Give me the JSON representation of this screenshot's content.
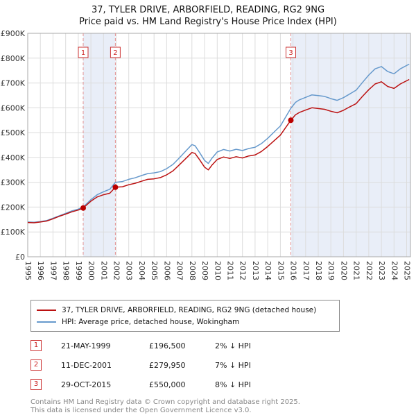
{
  "chart_data": {
    "type": "line",
    "title": "37, TYLER DRIVE, ARBORFIELD, READING, RG2 9NG",
    "subtitle": "Price paid vs. HM Land Registry's House Price Index (HPI)",
    "ylim": [
      0,
      900000
    ],
    "ytick_step": 100000,
    "ytick_labels": [
      "£0",
      "£100K",
      "£200K",
      "£300K",
      "£400K",
      "£500K",
      "£600K",
      "£700K",
      "£800K",
      "£900K"
    ],
    "xlim": [
      1995,
      2025.3
    ],
    "xticks": [
      1995,
      1996,
      1997,
      1998,
      1999,
      2000,
      2001,
      2002,
      2003,
      2004,
      2005,
      2006,
      2007,
      2008,
      2009,
      2010,
      2011,
      2012,
      2013,
      2014,
      2015,
      2016,
      2017,
      2018,
      2019,
      2020,
      2021,
      2022,
      2023,
      2024,
      2025
    ],
    "grid": true,
    "legend_position": "below",
    "colors": {
      "price_paid": "#bb1111",
      "hpi": "#6699cc",
      "band": "#e9eef8",
      "grid": "#dcdcdc",
      "frame": "#aaaaaa",
      "dashed": "#e39090",
      "marker": "#bb0000",
      "marker_box_border": "#cc3333",
      "marker_box_text": "#cc2222"
    },
    "bands": [
      [
        1999.39,
        2001.94
      ],
      [
        2015.83,
        2025.3
      ]
    ],
    "sales": [
      {
        "label": "1",
        "x": 1999.39,
        "price": 196500
      },
      {
        "label": "2",
        "x": 2001.94,
        "price": 279950
      },
      {
        "label": "3",
        "x": 2015.83,
        "price": 550000
      }
    ],
    "legend": [
      {
        "label": "37, TYLER DRIVE, ARBORFIELD, READING, RG2 9NG (detached house)",
        "color": "#bb1111"
      },
      {
        "label": "HPI: Average price, detached house, Wokingham",
        "color": "#6699cc"
      }
    ],
    "series": [
      {
        "name": "hpi",
        "color": "#6699cc",
        "points": [
          [
            1995.0,
            140000
          ],
          [
            1995.5,
            139000
          ],
          [
            1996.0,
            142000
          ],
          [
            1996.5,
            146000
          ],
          [
            1997.0,
            155000
          ],
          [
            1997.5,
            165000
          ],
          [
            1998.0,
            175000
          ],
          [
            1998.5,
            185000
          ],
          [
            1999.0,
            192000
          ],
          [
            1999.39,
            200000
          ],
          [
            2000.0,
            230000
          ],
          [
            2000.5,
            250000
          ],
          [
            2001.0,
            262000
          ],
          [
            2001.5,
            272000
          ],
          [
            2001.94,
            300000
          ],
          [
            2002.5,
            303000
          ],
          [
            2003.0,
            312000
          ],
          [
            2003.5,
            318000
          ],
          [
            2004.0,
            327000
          ],
          [
            2004.5,
            335000
          ],
          [
            2005.0,
            338000
          ],
          [
            2005.5,
            343000
          ],
          [
            2006.0,
            355000
          ],
          [
            2006.5,
            372000
          ],
          [
            2007.0,
            398000
          ],
          [
            2007.5,
            425000
          ],
          [
            2008.0,
            452000
          ],
          [
            2008.25,
            447000
          ],
          [
            2008.6,
            420000
          ],
          [
            2009.0,
            388000
          ],
          [
            2009.3,
            376000
          ],
          [
            2009.6,
            398000
          ],
          [
            2010.0,
            422000
          ],
          [
            2010.5,
            432000
          ],
          [
            2011.0,
            426000
          ],
          [
            2011.5,
            433000
          ],
          [
            2012.0,
            428000
          ],
          [
            2012.5,
            436000
          ],
          [
            2013.0,
            441000
          ],
          [
            2013.5,
            456000
          ],
          [
            2014.0,
            477000
          ],
          [
            2014.5,
            502000
          ],
          [
            2015.0,
            527000
          ],
          [
            2015.83,
            598000
          ],
          [
            2016.2,
            622000
          ],
          [
            2016.5,
            632000
          ],
          [
            2017.0,
            642000
          ],
          [
            2017.5,
            652000
          ],
          [
            2018.0,
            649000
          ],
          [
            2018.5,
            646000
          ],
          [
            2019.0,
            637000
          ],
          [
            2019.5,
            630000
          ],
          [
            2020.0,
            641000
          ],
          [
            2020.5,
            656000
          ],
          [
            2021.0,
            671000
          ],
          [
            2021.5,
            702000
          ],
          [
            2022.0,
            732000
          ],
          [
            2022.5,
            757000
          ],
          [
            2023.0,
            766000
          ],
          [
            2023.5,
            746000
          ],
          [
            2024.0,
            737000
          ],
          [
            2024.5,
            757000
          ],
          [
            2025.2,
            776000
          ]
        ]
      },
      {
        "name": "price-paid",
        "color": "#bb1111",
        "points": [
          [
            1995.0,
            138000
          ],
          [
            1995.5,
            137000
          ],
          [
            1996.0,
            140000
          ],
          [
            1996.5,
            144000
          ],
          [
            1997.0,
            153000
          ],
          [
            1997.5,
            163000
          ],
          [
            1998.0,
            172000
          ],
          [
            1998.5,
            181000
          ],
          [
            1999.0,
            188000
          ],
          [
            1999.39,
            196500
          ],
          [
            2000.0,
            224000
          ],
          [
            2000.5,
            241000
          ],
          [
            2001.0,
            250000
          ],
          [
            2001.5,
            256000
          ],
          [
            2001.94,
            279950
          ],
          [
            2002.5,
            282000
          ],
          [
            2003.0,
            290000
          ],
          [
            2003.5,
            296000
          ],
          [
            2004.0,
            304000
          ],
          [
            2004.5,
            312000
          ],
          [
            2005.0,
            314000
          ],
          [
            2005.5,
            319000
          ],
          [
            2006.0,
            330000
          ],
          [
            2006.5,
            346000
          ],
          [
            2007.0,
            370000
          ],
          [
            2007.5,
            395000
          ],
          [
            2008.0,
            420000
          ],
          [
            2008.25,
            416000
          ],
          [
            2008.6,
            391000
          ],
          [
            2009.0,
            361000
          ],
          [
            2009.3,
            350000
          ],
          [
            2009.6,
            370000
          ],
          [
            2010.0,
            392000
          ],
          [
            2010.5,
            402000
          ],
          [
            2011.0,
            396000
          ],
          [
            2011.5,
            403000
          ],
          [
            2012.0,
            398000
          ],
          [
            2012.5,
            406000
          ],
          [
            2013.0,
            410000
          ],
          [
            2013.5,
            424000
          ],
          [
            2014.0,
            444000
          ],
          [
            2014.5,
            467000
          ],
          [
            2015.0,
            490000
          ],
          [
            2015.83,
            550000
          ],
          [
            2016.2,
            572000
          ],
          [
            2016.5,
            581000
          ],
          [
            2017.0,
            591000
          ],
          [
            2017.5,
            600000
          ],
          [
            2018.0,
            597000
          ],
          [
            2018.5,
            594000
          ],
          [
            2019.0,
            586000
          ],
          [
            2019.5,
            580000
          ],
          [
            2020.0,
            590000
          ],
          [
            2020.5,
            604000
          ],
          [
            2021.0,
            617000
          ],
          [
            2021.5,
            646000
          ],
          [
            2022.0,
            673000
          ],
          [
            2022.5,
            696000
          ],
          [
            2023.0,
            705000
          ],
          [
            2023.5,
            686000
          ],
          [
            2024.0,
            678000
          ],
          [
            2024.5,
            696000
          ],
          [
            2025.2,
            714000
          ]
        ]
      }
    ]
  },
  "transactions": [
    {
      "num": "1",
      "date": "21-MAY-1999",
      "price": "£196,500",
      "hpi": "2% ↓ HPI"
    },
    {
      "num": "2",
      "date": "11-DEC-2001",
      "price": "£279,950",
      "hpi": "7% ↓ HPI"
    },
    {
      "num": "3",
      "date": "29-OCT-2015",
      "price": "£550,000",
      "hpi": "8% ↓ HPI"
    }
  ],
  "footer": {
    "line1": "Contains HM Land Registry data © Crown copyright and database right 2025.",
    "line2": "This data is licensed under the Open Government Licence v3.0."
  }
}
